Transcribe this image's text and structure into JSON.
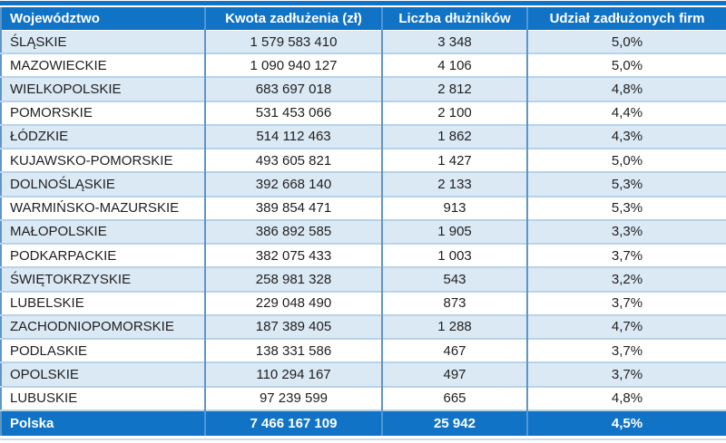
{
  "chart_data": {
    "type": "table",
    "columns": [
      "Województwo",
      "Kwota zadłużenia (zł)",
      "Liczba dłużników",
      "Udział zadłużonych firm"
    ],
    "rows": [
      [
        "ŚLĄSKIE",
        "1 579 583 410",
        "3 348",
        "5,0%"
      ],
      [
        "MAZOWIECKIE",
        "1 090 940 127",
        "4 106",
        "5,0%"
      ],
      [
        "WIELKOPOLSKIE",
        "683 697 018",
        "2 812",
        "4,8%"
      ],
      [
        "POMORSKIE",
        "531 453 066",
        "2 100",
        "4,4%"
      ],
      [
        "ŁÓDZKIE",
        "514 112 463",
        "1 862",
        "4,3%"
      ],
      [
        "KUJAWSKO-POMORSKIE",
        "493 605 821",
        "1 427",
        "5,0%"
      ],
      [
        "DOLNOŚLĄSKIE",
        "392 668 140",
        "2 133",
        "5,3%"
      ],
      [
        "WARMIŃSKO-MAZURSKIE",
        "389 854 471",
        "913",
        "5,3%"
      ],
      [
        "MAŁOPOLSKIE",
        "386 892 585",
        "1 905",
        "3,3%"
      ],
      [
        "PODKARPACKIE",
        "382 075 433",
        "1 003",
        "3,7%"
      ],
      [
        "ŚWIĘTOKRZYSKIE",
        "258 981 328",
        "543",
        "3,2%"
      ],
      [
        "LUBELSKIE",
        "229 048 490",
        "873",
        "3,7%"
      ],
      [
        "ZACHODNIOPOMORSKIE",
        "187 389 405",
        "1 288",
        "4,7%"
      ],
      [
        "PODLASKIE",
        "138 331 586",
        "467",
        "3,7%"
      ],
      [
        "OPOLSKIE",
        "110 294 167",
        "497",
        "3,7%"
      ],
      [
        "LUBUSKIE",
        "97 239 599",
        "665",
        "4,8%"
      ]
    ],
    "footer": [
      "Polska",
      "7 466 167 109",
      "25 942",
      "4,5%"
    ]
  },
  "colors": {
    "header_bg": "#1173c5",
    "header_text": "#ffffff",
    "alt_row_bg": "#dbe9f5",
    "grid_vertical": "#5e96c8",
    "grid_horizontal": "#b7d3ea",
    "body_text": "#1f1f1f"
  }
}
